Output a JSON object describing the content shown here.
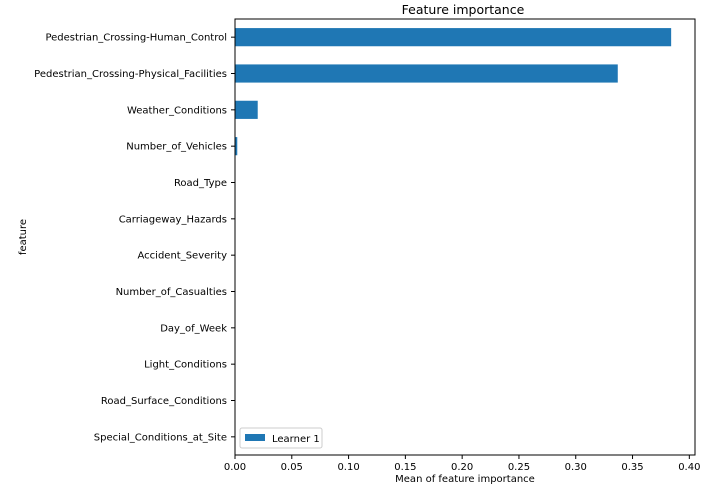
{
  "chart_data": {
    "type": "bar",
    "orientation": "horizontal",
    "title": "Feature importance",
    "xlabel": "Mean of feature importance",
    "ylabel": "feature",
    "xlim": [
      0.0,
      0.405
    ],
    "xticks": [
      0.0,
      0.05,
      0.1,
      0.15,
      0.2,
      0.25,
      0.3,
      0.35,
      0.4
    ],
    "xtick_labels": [
      "0.00",
      "0.05",
      "0.10",
      "0.15",
      "0.20",
      "0.25",
      "0.30",
      "0.35",
      "0.40"
    ],
    "categories": [
      "Pedestrian_Crossing-Human_Control",
      "Pedestrian_Crossing-Physical_Facilities",
      "Weather_Conditions",
      "Number_of_Vehicles",
      "Road_Type",
      "Carriageway_Hazards",
      "Accident_Severity",
      "Number_of_Casualties",
      "Day_of_Week",
      "Light_Conditions",
      "Road_Surface_Conditions",
      "Special_Conditions_at_Site"
    ],
    "series": [
      {
        "name": "Learner 1",
        "color": "#1f77b4",
        "values": [
          0.384,
          0.337,
          0.02,
          0.002,
          0.0,
          0.0,
          0.0,
          0.0,
          0.0,
          0.0,
          0.0,
          0.0
        ]
      }
    ],
    "legend_position": "lower-left",
    "grid": false
  }
}
